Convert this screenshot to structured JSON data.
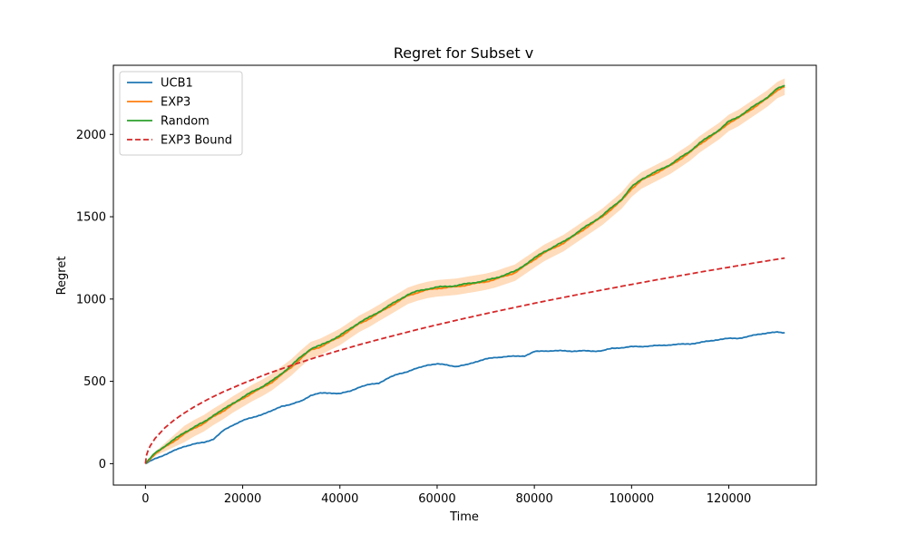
{
  "chart_data": {
    "type": "line",
    "title": "Regret for Subset v",
    "xlabel": "Time",
    "ylabel": "Regret",
    "xlim": [
      -6600,
      138000
    ],
    "ylim": [
      -130,
      2420
    ],
    "xticks": [
      0,
      20000,
      40000,
      60000,
      80000,
      100000,
      120000
    ],
    "xtick_labels": [
      "0",
      "20000",
      "40000",
      "60000",
      "80000",
      "100000",
      "120000"
    ],
    "yticks": [
      0,
      500,
      1000,
      1500,
      2000
    ],
    "ytick_labels": [
      "0",
      "500",
      "1000",
      "1500",
      "2000"
    ],
    "grid": false,
    "legend_position": "upper-left",
    "series": [
      {
        "name": "UCB1",
        "color": "#1f77b4",
        "style": "solid",
        "x": [
          0,
          2000,
          4000,
          6000,
          8000,
          10000,
          12000,
          14000,
          16000,
          18000,
          20000,
          22000,
          24000,
          26000,
          28000,
          30000,
          32000,
          34000,
          36000,
          38000,
          40000,
          42000,
          44000,
          46000,
          48000,
          50000,
          52000,
          54000,
          56000,
          58000,
          60000,
          62000,
          64000,
          66000,
          68000,
          70000,
          72000,
          74000,
          76000,
          78000,
          80000,
          82000,
          84000,
          86000,
          88000,
          90000,
          92000,
          94000,
          96000,
          98000,
          100000,
          102000,
          104000,
          106000,
          108000,
          110000,
          112000,
          114000,
          116000,
          118000,
          120000,
          122000,
          124000,
          126000,
          128000,
          130000,
          131500
        ],
        "y": [
          0,
          30,
          55,
          80,
          105,
          120,
          128,
          150,
          200,
          235,
          262,
          280,
          300,
          320,
          350,
          360,
          380,
          415,
          428,
          430,
          425,
          440,
          465,
          480,
          490,
          520,
          545,
          560,
          580,
          600,
          605,
          600,
          590,
          600,
          620,
          635,
          645,
          650,
          652,
          655,
          680,
          685,
          686,
          685,
          684,
          685,
          684,
          686,
          700,
          705,
          710,
          712,
          715,
          718,
          722,
          725,
          728,
          735,
          745,
          755,
          760,
          762,
          772,
          785,
          795,
          798,
          795
        ]
      },
      {
        "name": "EXP3",
        "color": "#ff7f0e",
        "style": "solid",
        "band_color": "#ffdcbc",
        "band": 50,
        "x": [
          0,
          2000,
          4000,
          6000,
          8000,
          10000,
          12000,
          14000,
          16000,
          18000,
          20000,
          22000,
          24000,
          26000,
          28000,
          30000,
          32000,
          34000,
          36000,
          38000,
          40000,
          42000,
          44000,
          46000,
          48000,
          50000,
          52000,
          54000,
          56000,
          58000,
          60000,
          62000,
          64000,
          66000,
          68000,
          70000,
          72000,
          74000,
          76000,
          78000,
          80000,
          82000,
          84000,
          86000,
          88000,
          90000,
          92000,
          94000,
          96000,
          98000,
          100000,
          102000,
          104000,
          106000,
          108000,
          110000,
          112000,
          114000,
          116000,
          118000,
          120000,
          122000,
          124000,
          126000,
          128000,
          130000,
          131500
        ],
        "y": [
          0,
          60,
          100,
          140,
          180,
          215,
          245,
          285,
          320,
          360,
          395,
          430,
          460,
          495,
          540,
          585,
          640,
          690,
          710,
          740,
          770,
          810,
          850,
          880,
          915,
          950,
          985,
          1020,
          1040,
          1055,
          1065,
          1070,
          1075,
          1085,
          1095,
          1105,
          1120,
          1140,
          1160,
          1200,
          1240,
          1280,
          1310,
          1340,
          1380,
          1420,
          1460,
          1500,
          1550,
          1600,
          1670,
          1720,
          1750,
          1780,
          1810,
          1850,
          1890,
          1940,
          1980,
          2020,
          2070,
          2100,
          2140,
          2180,
          2220,
          2270,
          2290
        ]
      },
      {
        "name": "Random",
        "color": "#2ca02c",
        "style": "solid",
        "x": [
          0,
          2000,
          4000,
          6000,
          8000,
          10000,
          12000,
          14000,
          16000,
          18000,
          20000,
          22000,
          24000,
          26000,
          28000,
          30000,
          32000,
          34000,
          36000,
          38000,
          40000,
          42000,
          44000,
          46000,
          48000,
          50000,
          52000,
          54000,
          56000,
          58000,
          60000,
          62000,
          64000,
          66000,
          68000,
          70000,
          72000,
          74000,
          76000,
          78000,
          80000,
          82000,
          84000,
          86000,
          88000,
          90000,
          92000,
          94000,
          96000,
          98000,
          100000,
          102000,
          104000,
          106000,
          108000,
          110000,
          112000,
          114000,
          116000,
          118000,
          120000,
          122000,
          124000,
          126000,
          128000,
          130000,
          131500
        ],
        "y": [
          0,
          65,
          108,
          148,
          190,
          222,
          252,
          295,
          328,
          368,
          402,
          438,
          468,
          502,
          548,
          595,
          650,
          698,
          718,
          748,
          778,
          818,
          858,
          888,
          922,
          958,
          993,
          1028,
          1048,
          1062,
          1072,
          1077,
          1082,
          1092,
          1102,
          1112,
          1128,
          1148,
          1168,
          1208,
          1248,
          1288,
          1318,
          1348,
          1388,
          1428,
          1468,
          1508,
          1558,
          1608,
          1680,
          1728,
          1758,
          1788,
          1818,
          1858,
          1898,
          1948,
          1988,
          2028,
          2078,
          2108,
          2148,
          2188,
          2228,
          2278,
          2298
        ]
      },
      {
        "name": "EXP3 Bound",
        "color": "#d62728",
        "style": "dashed",
        "x": [
          0,
          200,
          500,
          1000,
          2000,
          4000,
          6000,
          8000,
          10000,
          13000,
          16000,
          20000,
          25000,
          30000,
          35000,
          40000,
          45000,
          50000,
          55000,
          60000,
          65000,
          70000,
          75000,
          80000,
          85000,
          90000,
          95000,
          100000,
          105000,
          110000,
          115000,
          120000,
          125000,
          130000,
          131500
        ],
        "y": [
          0,
          49,
          77,
          109,
          154,
          218,
          267,
          308,
          345,
          393,
          436,
          487,
          545,
          597,
          645,
          689,
          731,
          770,
          808,
          844,
          878,
          911,
          943,
          974,
          1004,
          1033,
          1061,
          1089,
          1116,
          1142,
          1168,
          1193,
          1218,
          1242,
          1249
        ]
      }
    ]
  }
}
